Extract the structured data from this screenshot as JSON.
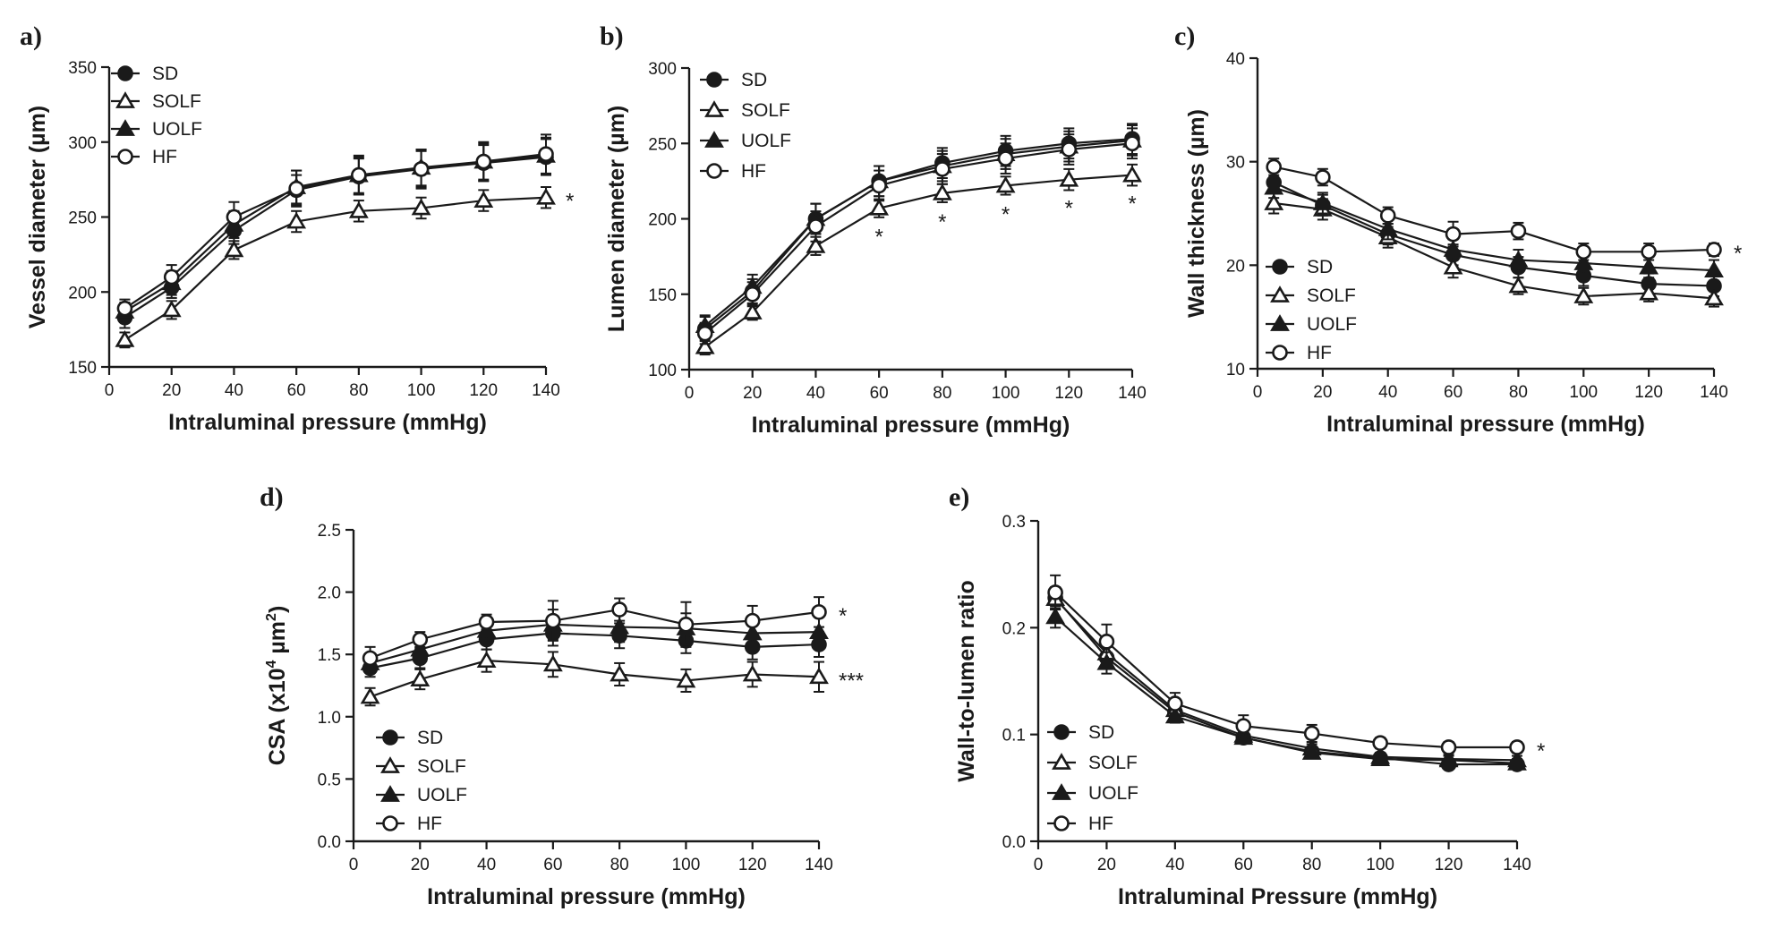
{
  "chart_data": [
    {
      "panel": "a)",
      "type": "line",
      "xlabel": "Intraluminal pressure (mmHg)",
      "ylabel": "Vessel diameter (µm)",
      "ylabel_sup": "",
      "xlim": [
        0,
        140
      ],
      "ylim": [
        150,
        350
      ],
      "x_ticks": [
        0,
        20,
        40,
        60,
        80,
        100,
        120,
        140
      ],
      "y_ticks": [
        150,
        200,
        250,
        300,
        350
      ],
      "x": [
        5,
        20,
        40,
        60,
        80,
        100,
        120,
        140
      ],
      "legend_position": "top-left",
      "series": [
        {
          "name": "SD",
          "marker": "filled-circle",
          "values": [
            183,
            203,
            241,
            268,
            277,
            282,
            286,
            290
          ],
          "errors": [
            7,
            7,
            9,
            10,
            12,
            12,
            12,
            12
          ]
        },
        {
          "name": "SOLF",
          "marker": "open-triangle",
          "values": [
            168,
            188,
            228,
            247,
            254,
            256,
            261,
            263
          ],
          "errors": [
            5,
            6,
            6,
            7,
            7,
            7,
            7,
            7
          ]
        },
        {
          "name": "UOLF",
          "marker": "filled-triangle",
          "values": [
            187,
            206,
            245,
            270,
            278,
            283,
            287,
            291
          ],
          "errors": [
            6,
            8,
            9,
            11,
            12,
            12,
            12,
            12
          ]
        },
        {
          "name": "HF",
          "marker": "open-circle",
          "values": [
            189,
            210,
            250,
            269,
            278,
            282,
            287,
            292
          ],
          "errors": [
            6,
            8,
            10,
            12,
            13,
            13,
            13,
            13
          ]
        }
      ],
      "annotations": [
        {
          "text": "*",
          "x": 140,
          "y": 263,
          "placement": "right"
        }
      ]
    },
    {
      "panel": "b)",
      "type": "line",
      "xlabel": "Intraluminal pressure (mmHg)",
      "ylabel": "Lumen diameter (µm)",
      "ylabel_sup": "",
      "xlim": [
        0,
        140
      ],
      "ylim": [
        100,
        300
      ],
      "x_ticks": [
        0,
        20,
        40,
        60,
        80,
        100,
        120,
        140
      ],
      "y_ticks": [
        100,
        150,
        200,
        250,
        300
      ],
      "x": [
        5,
        20,
        40,
        60,
        80,
        100,
        120,
        140
      ],
      "legend_position": "top-left",
      "series": [
        {
          "name": "SD",
          "marker": "filled-circle",
          "values": [
            127,
            152,
            200,
            225,
            237,
            245,
            250,
            253
          ],
          "errors": [
            8,
            8,
            10,
            10,
            10,
            10,
            10,
            10
          ]
        },
        {
          "name": "SOLF",
          "marker": "open-triangle",
          "values": [
            115,
            138,
            182,
            207,
            217,
            222,
            226,
            229
          ],
          "errors": [
            5,
            5,
            6,
            6,
            6,
            6,
            7,
            7
          ]
        },
        {
          "name": "UOLF",
          "marker": "filled-triangle",
          "values": [
            129,
            155,
            200,
            225,
            235,
            243,
            248,
            252
          ],
          "errors": [
            7,
            8,
            10,
            10,
            10,
            10,
            10,
            10
          ]
        },
        {
          "name": "HF",
          "marker": "open-circle",
          "values": [
            124,
            150,
            195,
            222,
            233,
            240,
            246,
            250
          ],
          "errors": [
            7,
            8,
            10,
            10,
            10,
            10,
            10,
            10
          ]
        }
      ],
      "annotations": [
        {
          "text": "*",
          "x": 60,
          "y": 207,
          "placement": "below"
        },
        {
          "text": "*",
          "x": 80,
          "y": 217,
          "placement": "below"
        },
        {
          "text": "*",
          "x": 100,
          "y": 222,
          "placement": "below"
        },
        {
          "text": "*",
          "x": 120,
          "y": 226,
          "placement": "below"
        },
        {
          "text": "*",
          "x": 140,
          "y": 229,
          "placement": "below"
        }
      ]
    },
    {
      "panel": "c)",
      "type": "line",
      "xlabel": "Intraluminal pressure (mmHg)",
      "ylabel": "Wall thickness (µm)",
      "ylabel_sup": "",
      "xlim": [
        0,
        140
      ],
      "ylim": [
        10,
        40
      ],
      "x_ticks": [
        0,
        20,
        40,
        60,
        80,
        100,
        120,
        140
      ],
      "y_ticks": [
        10,
        20,
        30,
        40
      ],
      "x": [
        5,
        20,
        40,
        60,
        80,
        100,
        120,
        140
      ],
      "legend_position": "bottom-left",
      "series": [
        {
          "name": "SD",
          "marker": "filled-circle",
          "values": [
            28.0,
            25.8,
            23.0,
            21.0,
            19.8,
            19.0,
            18.2,
            18.0
          ],
          "errors": [
            1.0,
            1.0,
            1.0,
            1.0,
            1.0,
            1.0,
            1.0,
            1.0
          ]
        },
        {
          "name": "SOLF",
          "marker": "open-triangle",
          "values": [
            26.0,
            25.4,
            22.7,
            19.8,
            18.0,
            17.0,
            17.3,
            16.8
          ],
          "errors": [
            1.0,
            1.0,
            1.0,
            1.0,
            0.8,
            0.8,
            0.8,
            0.8
          ]
        },
        {
          "name": "UOLF",
          "marker": "filled-triangle",
          "values": [
            27.5,
            26.0,
            23.5,
            21.5,
            20.5,
            20.2,
            19.8,
            19.5
          ],
          "errors": [
            1.0,
            1.0,
            1.0,
            1.0,
            1.0,
            1.0,
            1.0,
            1.0
          ]
        },
        {
          "name": "HF",
          "marker": "open-circle",
          "values": [
            29.5,
            28.5,
            24.8,
            23.0,
            23.3,
            21.3,
            21.3,
            21.5
          ],
          "errors": [
            0.8,
            0.8,
            0.8,
            1.2,
            0.8,
            0.8,
            0.8,
            0.6
          ]
        }
      ],
      "annotations": [
        {
          "text": "*",
          "x": 140,
          "y": 21.5,
          "placement": "right"
        }
      ]
    },
    {
      "panel": "d)",
      "type": "line",
      "xlabel": "Intraluminal pressure (mmHg)",
      "ylabel": "CSA (x10",
      "ylabel_sup": "4",
      "ylabel_mid": " µm",
      "ylabel_sup2": "2",
      "ylabel_end": ")",
      "xlim": [
        0,
        140
      ],
      "ylim": [
        0.0,
        2.5
      ],
      "x_ticks": [
        0,
        20,
        40,
        60,
        80,
        100,
        120,
        140
      ],
      "y_ticks": [
        0.0,
        0.5,
        1.0,
        1.5,
        2.0,
        2.5
      ],
      "y_tick_labels": [
        "0.0",
        "0.5",
        "1.0",
        "1.5",
        "2.0",
        "2.5"
      ],
      "x": [
        5,
        20,
        40,
        60,
        80,
        100,
        120,
        140
      ],
      "legend_position": "bottom-left",
      "series": [
        {
          "name": "SD",
          "marker": "filled-circle",
          "values": [
            1.39,
            1.47,
            1.62,
            1.67,
            1.65,
            1.61,
            1.56,
            1.58
          ],
          "errors": [
            0.07,
            0.08,
            0.08,
            0.1,
            0.1,
            0.1,
            0.1,
            0.1
          ]
        },
        {
          "name": "SOLF",
          "marker": "open-triangle",
          "values": [
            1.16,
            1.3,
            1.45,
            1.42,
            1.34,
            1.29,
            1.34,
            1.32
          ],
          "errors": [
            0.07,
            0.08,
            0.09,
            0.1,
            0.09,
            0.09,
            0.1,
            0.12
          ]
        },
        {
          "name": "UOLF",
          "marker": "filled-triangle",
          "values": [
            1.43,
            1.54,
            1.69,
            1.74,
            1.72,
            1.71,
            1.67,
            1.68
          ],
          "errors": [
            0.07,
            0.08,
            0.09,
            0.12,
            0.12,
            0.12,
            0.12,
            0.12
          ]
        },
        {
          "name": "HF",
          "marker": "open-circle",
          "values": [
            1.47,
            1.62,
            1.76,
            1.77,
            1.86,
            1.74,
            1.77,
            1.84
          ],
          "errors": [
            0.09,
            0.06,
            0.06,
            0.16,
            0.09,
            0.18,
            0.12,
            0.12
          ]
        }
      ],
      "annotations": [
        {
          "text": "*",
          "x": 140,
          "y": 1.84,
          "placement": "right"
        },
        {
          "text": "***",
          "x": 140,
          "y": 1.32,
          "placement": "right"
        }
      ]
    },
    {
      "panel": "e)",
      "type": "line",
      "xlabel": "Intraluminal Pressure (mmHg)",
      "ylabel": "Wall-to-lumen ratio",
      "ylabel_sup": "",
      "xlim": [
        0,
        140
      ],
      "ylim": [
        0.0,
        0.3
      ],
      "x_ticks": [
        0,
        20,
        40,
        60,
        80,
        100,
        120,
        140
      ],
      "y_ticks": [
        0.0,
        0.1,
        0.2,
        0.3
      ],
      "y_tick_labels": [
        "0.0",
        "0.1",
        "0.2",
        "0.3"
      ],
      "x": [
        5,
        20,
        40,
        60,
        80,
        100,
        120,
        140
      ],
      "legend_position": "bottom-left",
      "series": [
        {
          "name": "SD",
          "marker": "filled-circle",
          "values": [
            0.228,
            0.172,
            0.121,
            0.097,
            0.084,
            0.078,
            0.072,
            0.072
          ],
          "errors": [
            0.01,
            0.01,
            0.006,
            0.005,
            0.004,
            0.004,
            0.004,
            0.004
          ]
        },
        {
          "name": "SOLF",
          "marker": "open-triangle",
          "values": [
            0.227,
            0.176,
            0.123,
            0.099,
            0.087,
            0.079,
            0.077,
            0.076
          ],
          "errors": [
            0.01,
            0.01,
            0.006,
            0.005,
            0.004,
            0.004,
            0.004,
            0.004
          ]
        },
        {
          "name": "UOLF",
          "marker": "filled-triangle",
          "values": [
            0.21,
            0.167,
            0.117,
            0.097,
            0.083,
            0.077,
            0.076,
            0.073
          ],
          "errors": [
            0.01,
            0.01,
            0.006,
            0.005,
            0.004,
            0.004,
            0.004,
            0.004
          ]
        },
        {
          "name": "HF",
          "marker": "open-circle",
          "values": [
            0.233,
            0.187,
            0.129,
            0.108,
            0.101,
            0.092,
            0.088,
            0.088
          ],
          "errors": [
            0.016,
            0.016,
            0.01,
            0.01,
            0.008,
            0.005,
            0.005,
            0.005
          ]
        }
      ],
      "annotations": [
        {
          "text": "*",
          "x": 140,
          "y": 0.088,
          "placement": "right"
        }
      ]
    }
  ]
}
